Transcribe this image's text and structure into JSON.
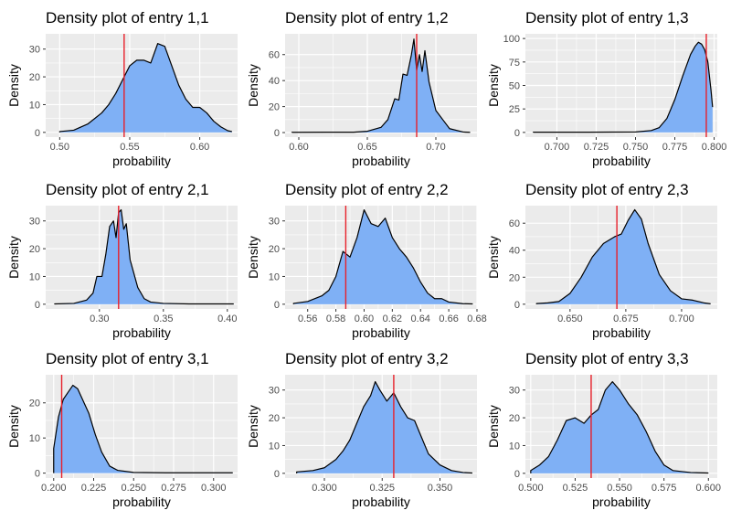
{
  "chart_data": [
    {
      "type": "area",
      "title": "Density plot of entry 1,1",
      "xlabel": "probability",
      "ylabel": "Density",
      "xlim": [
        0.49,
        0.627
      ],
      "ylim": [
        -1.7,
        35.5
      ],
      "xticks": [
        0.5,
        0.55,
        0.6
      ],
      "yticks": [
        0,
        10,
        20,
        30
      ],
      "xtick_labels": [
        "0.50",
        "0.55",
        "0.60"
      ],
      "ytick_labels": [
        "0",
        "10",
        "20",
        "30"
      ],
      "vline": 0.546,
      "x": [
        0.5,
        0.51,
        0.52,
        0.53,
        0.535,
        0.54,
        0.545,
        0.55,
        0.555,
        0.56,
        0.565,
        0.57,
        0.575,
        0.58,
        0.585,
        0.59,
        0.595,
        0.6,
        0.605,
        0.61,
        0.615,
        0.62,
        0.623
      ],
      "y": [
        0.3,
        0.8,
        3,
        7,
        10,
        14,
        19,
        24,
        26,
        26,
        25,
        32,
        31,
        24,
        17,
        12,
        9,
        9,
        7,
        4,
        2,
        0.6,
        0.3
      ]
    },
    {
      "type": "area",
      "title": "Density plot of entry 1,2",
      "xlabel": "probability",
      "ylabel": "Density",
      "xlim": [
        0.59,
        0.73
      ],
      "ylim": [
        -3.5,
        76
      ],
      "xticks": [
        0.6,
        0.65,
        0.7
      ],
      "yticks": [
        0,
        20,
        40,
        60
      ],
      "xtick_labels": [
        "0.60",
        "0.65",
        "0.70"
      ],
      "ytick_labels": [
        "0",
        "20",
        "40",
        "60"
      ],
      "vline": 0.686,
      "x": [
        0.595,
        0.62,
        0.64,
        0.65,
        0.66,
        0.665,
        0.67,
        0.673,
        0.676,
        0.679,
        0.682,
        0.684,
        0.686,
        0.688,
        0.69,
        0.692,
        0.695,
        0.7,
        0.705,
        0.71,
        0.72,
        0.725
      ],
      "y": [
        0.2,
        0.3,
        0.3,
        1,
        4,
        10,
        26,
        25,
        45,
        44,
        59,
        72,
        48,
        60,
        47,
        63,
        39,
        17,
        10,
        3,
        0.4,
        0.2
      ]
    },
    {
      "type": "area",
      "title": "Density plot of entry 1,3",
      "xlabel": "probability",
      "ylabel": "Density",
      "xlim": [
        0.68,
        0.802
      ],
      "ylim": [
        -5,
        105
      ],
      "xticks": [
        0.7,
        0.725,
        0.75,
        0.775,
        0.8
      ],
      "yticks": [
        0,
        25,
        50,
        75,
        100
      ],
      "xtick_labels": [
        "0.700",
        "0.725",
        "0.750",
        "0.775",
        "0.800"
      ],
      "ytick_labels": [
        "0",
        "25",
        "50",
        "75",
        "100"
      ],
      "vline": 0.795,
      "x": [
        0.685,
        0.72,
        0.75,
        0.76,
        0.765,
        0.77,
        0.775,
        0.78,
        0.785,
        0.788,
        0.79,
        0.792,
        0.794,
        0.796,
        0.798,
        0.799
      ],
      "y": [
        0.2,
        0.2,
        0.5,
        2,
        5,
        15,
        35,
        60,
        83,
        92,
        96,
        94,
        88,
        75,
        45,
        27
      ]
    },
    {
      "type": "area",
      "title": "Density plot of entry 2,1",
      "xlabel": "probability",
      "ylabel": "Density",
      "xlim": [
        0.258,
        0.408
      ],
      "ylim": [
        -1.7,
        35.5
      ],
      "xticks": [
        0.3,
        0.35,
        0.4
      ],
      "yticks": [
        0,
        10,
        20,
        30
      ],
      "xtick_labels": [
        "0.30",
        "0.35",
        "0.40"
      ],
      "ytick_labels": [
        "0",
        "10",
        "20",
        "30"
      ],
      "vline": 0.315,
      "x": [
        0.265,
        0.28,
        0.29,
        0.295,
        0.298,
        0.302,
        0.305,
        0.308,
        0.311,
        0.313,
        0.315,
        0.317,
        0.319,
        0.321,
        0.324,
        0.327,
        0.33,
        0.335,
        0.34,
        0.35,
        0.37,
        0.39,
        0.405
      ],
      "y": [
        0.1,
        0.3,
        1.5,
        4,
        10,
        10,
        18,
        28,
        30,
        24,
        33,
        34,
        27,
        29,
        16,
        11,
        6,
        2,
        0.8,
        0.3,
        0.1,
        0.1,
        0.1
      ]
    },
    {
      "type": "area",
      "title": "Density plot of entry 2,2",
      "xlabel": "probability",
      "ylabel": "Density",
      "xlim": [
        0.544,
        0.68
      ],
      "ylim": [
        -1.7,
        35.5
      ],
      "xticks": [
        0.56,
        0.58,
        0.6,
        0.62,
        0.64,
        0.66,
        0.68
      ],
      "yticks": [
        0,
        10,
        20,
        30
      ],
      "xtick_labels": [
        "0.56",
        "0.58",
        "0.60",
        "0.62",
        "0.64",
        "0.66",
        "0.68"
      ],
      "ytick_labels": [
        "0",
        "10",
        "20",
        "30"
      ],
      "vline": 0.587,
      "x": [
        0.55,
        0.56,
        0.57,
        0.575,
        0.58,
        0.585,
        0.59,
        0.595,
        0.6,
        0.605,
        0.61,
        0.615,
        0.62,
        0.625,
        0.63,
        0.635,
        0.64,
        0.645,
        0.65,
        0.655,
        0.66,
        0.67,
        0.677
      ],
      "y": [
        0.3,
        1,
        3,
        5,
        10,
        19,
        17,
        24,
        34,
        29,
        28,
        31,
        24,
        20,
        17,
        13,
        8,
        4,
        2,
        2,
        0.8,
        0.2,
        0.1
      ]
    },
    {
      "type": "area",
      "title": "Density plot of entry 2,3",
      "xlabel": "probability",
      "ylabel": "Density",
      "xlim": [
        0.63,
        0.716
      ],
      "ylim": [
        -3.5,
        73
      ],
      "xticks": [
        0.65,
        0.675,
        0.7
      ],
      "yticks": [
        0,
        20,
        40,
        60
      ],
      "xtick_labels": [
        "0.650",
        "0.675",
        "0.700"
      ],
      "ytick_labels": [
        "0",
        "20",
        "40",
        "60"
      ],
      "vline": 0.671,
      "x": [
        0.635,
        0.64,
        0.645,
        0.65,
        0.655,
        0.66,
        0.665,
        0.67,
        0.673,
        0.676,
        0.679,
        0.682,
        0.685,
        0.69,
        0.695,
        0.7,
        0.705,
        0.71,
        0.713
      ],
      "y": [
        0.5,
        1,
        2,
        8,
        20,
        35,
        45,
        50,
        52,
        62,
        70,
        63,
        45,
        22,
        10,
        4,
        3,
        1,
        0.3
      ]
    },
    {
      "type": "area",
      "title": "Density plot of entry 3,1",
      "xlabel": "probability",
      "ylabel": "Density",
      "xlim": [
        0.195,
        0.315
      ],
      "ylim": [
        -1.4,
        28
      ],
      "xticks": [
        0.2,
        0.225,
        0.25,
        0.275,
        0.3
      ],
      "yticks": [
        0,
        10,
        20
      ],
      "xtick_labels": [
        "0.200",
        "0.225",
        "0.250",
        "0.275",
        "0.300"
      ],
      "ytick_labels": [
        "0",
        "10",
        "20"
      ],
      "vline": 0.205,
      "x": [
        0.2,
        0.203,
        0.206,
        0.209,
        0.212,
        0.215,
        0.218,
        0.222,
        0.226,
        0.23,
        0.235,
        0.24,
        0.25,
        0.27,
        0.3,
        0.312
      ],
      "y": [
        7,
        16,
        21,
        23,
        25,
        24,
        21,
        17,
        11,
        6,
        2,
        0.8,
        0.2,
        0.1,
        0.1,
        0.1
      ]
    },
    {
      "type": "area",
      "title": "Density plot of entry 3,2",
      "xlabel": "probability",
      "ylabel": "Density",
      "xlim": [
        0.283,
        0.366
      ],
      "ylim": [
        -1.7,
        35.5
      ],
      "xticks": [
        0.3,
        0.325,
        0.35
      ],
      "yticks": [
        0,
        10,
        20,
        30
      ],
      "xtick_labels": [
        "0.300",
        "0.325",
        "0.350"
      ],
      "ytick_labels": [
        "0",
        "10",
        "20",
        "30"
      ],
      "vline": 0.33,
      "x": [
        0.288,
        0.295,
        0.3,
        0.305,
        0.308,
        0.311,
        0.314,
        0.317,
        0.32,
        0.322,
        0.324,
        0.327,
        0.33,
        0.333,
        0.336,
        0.339,
        0.342,
        0.345,
        0.35,
        0.355,
        0.36,
        0.364
      ],
      "y": [
        0.5,
        1,
        2,
        5,
        8,
        12,
        18,
        24,
        28,
        33,
        30,
        26,
        29,
        24,
        20,
        19,
        13,
        7,
        3,
        1,
        0.3,
        0.1
      ]
    },
    {
      "type": "area",
      "title": "Density plot of entry 3,3",
      "xlabel": "probability",
      "ylabel": "Density",
      "xlim": [
        0.497,
        0.605
      ],
      "ylim": [
        -1.7,
        35.5
      ],
      "xticks": [
        0.5,
        0.525,
        0.55,
        0.575,
        0.6
      ],
      "yticks": [
        0,
        10,
        20,
        30
      ],
      "xtick_labels": [
        "0.500",
        "0.525",
        "0.550",
        "0.575",
        "0.600"
      ],
      "ytick_labels": [
        "0",
        "10",
        "20",
        "30"
      ],
      "vline": 0.534,
      "x": [
        0.5,
        0.505,
        0.51,
        0.515,
        0.52,
        0.525,
        0.53,
        0.534,
        0.538,
        0.542,
        0.546,
        0.55,
        0.555,
        0.56,
        0.565,
        0.57,
        0.575,
        0.58,
        0.59,
        0.6
      ],
      "y": [
        1,
        3,
        6,
        12,
        19,
        20,
        18,
        21,
        23,
        30,
        33,
        30,
        25,
        21,
        15,
        8,
        3,
        1,
        0.3,
        0.1
      ]
    }
  ],
  "style": {
    "panel_bg": "#ebebeb",
    "grid": "#ffffff",
    "fill": "#7fb0f5",
    "line": "#000000",
    "vline": "#e8202a"
  }
}
